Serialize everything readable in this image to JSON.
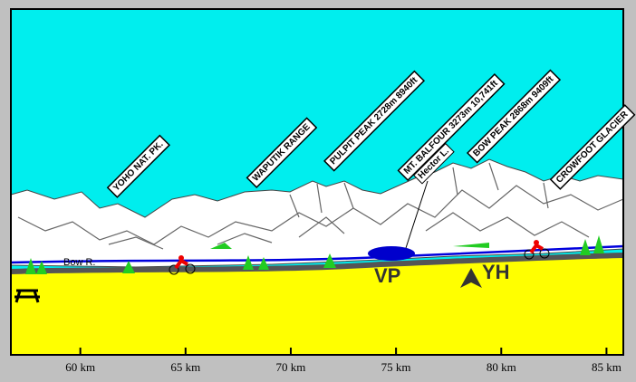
{
  "peaks": [
    {
      "label": "YOHO NAT. PK."
    },
    {
      "label": "WAPUTIK RANGE"
    },
    {
      "label": "PULPIT PEAK 2728m 8940ft"
    },
    {
      "label": "MT. BALFOUR 3273m 10,741ft"
    },
    {
      "label": "BOW PEAK 2868m 9409ft"
    },
    {
      "label": "CROWFOOT GLACIER"
    }
  ],
  "places": {
    "lake": "Hector L.",
    "river": "Bow R.",
    "viewpoint": "VP",
    "hostel": "YH"
  },
  "axis": {
    "lim": [
      56.7,
      85.8
    ],
    "ticks": [
      {
        "value": 60,
        "label": "60 km"
      },
      {
        "value": 65,
        "label": "65 km"
      },
      {
        "value": 70,
        "label": "70 km"
      },
      {
        "value": 75,
        "label": "75 km"
      },
      {
        "value": 80,
        "label": "80 km"
      },
      {
        "value": 85,
        "label": "85 km"
      }
    ]
  }
}
